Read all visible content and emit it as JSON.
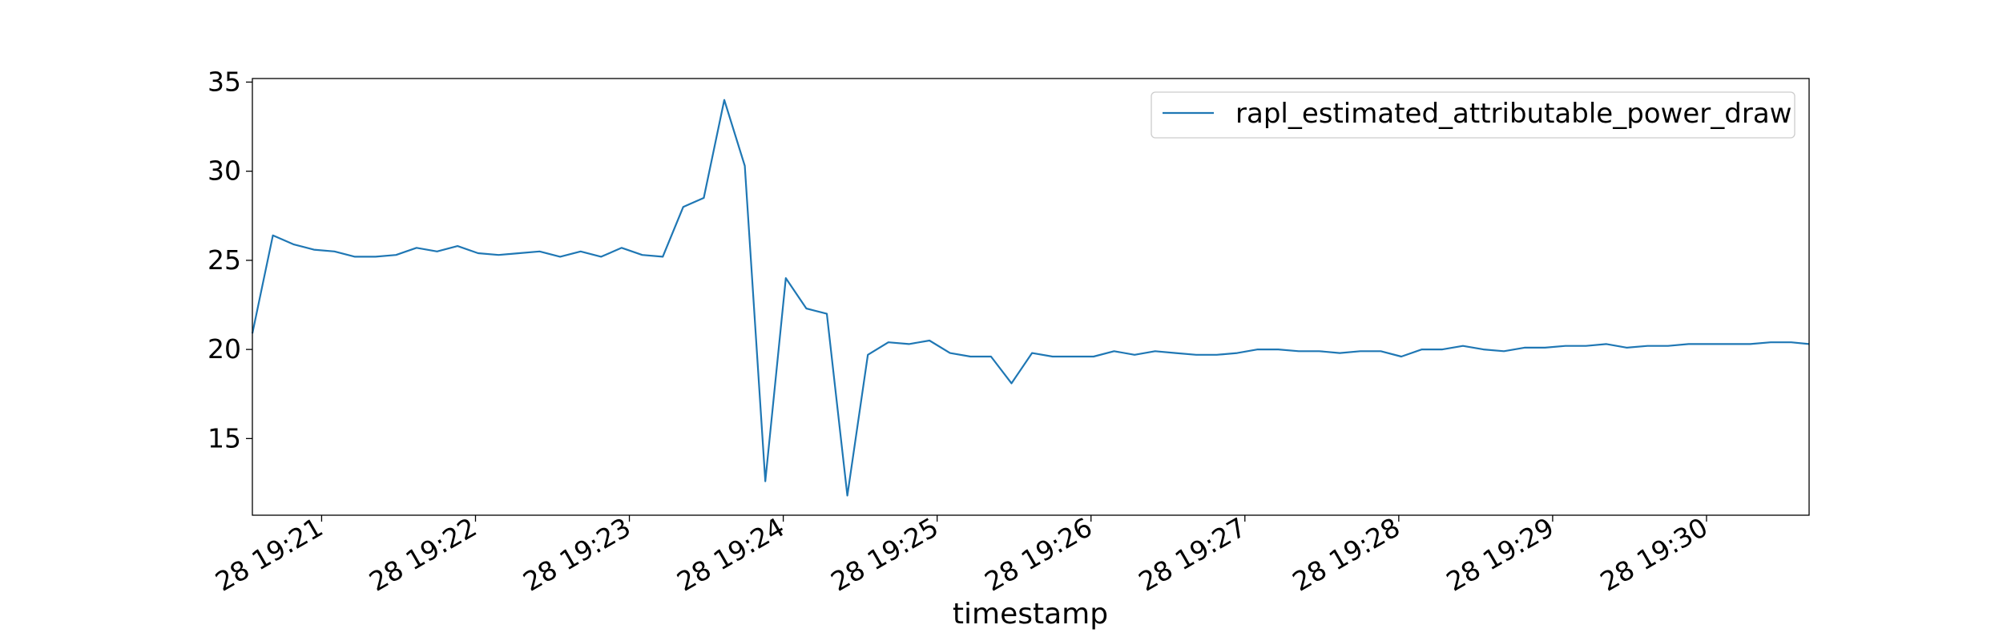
{
  "chart_data": {
    "type": "line",
    "title": "",
    "xlabel": "timestamp",
    "ylabel": "",
    "grid": false,
    "legend_position": "top-right",
    "line_color": "#1f77b4",
    "x_ticks": [
      {
        "time": "19:21",
        "label": "28 19:21"
      },
      {
        "time": "19:22",
        "label": "28 19:22"
      },
      {
        "time": "19:23",
        "label": "28 19:23"
      },
      {
        "time": "19:24",
        "label": "28 19:24"
      },
      {
        "time": "19:25",
        "label": "28 19:25"
      },
      {
        "time": "19:26",
        "label": "28 19:26"
      },
      {
        "time": "19:27",
        "label": "28 19:27"
      },
      {
        "time": "19:28",
        "label": "28 19:28"
      },
      {
        "time": "19:29",
        "label": "28 19:29"
      },
      {
        "time": "19:30",
        "label": "28 19:30"
      }
    ],
    "xlim": [
      "19:20:33",
      "19:30:40"
    ],
    "ylim": [
      10.7,
      35.2
    ],
    "y_ticks": [
      {
        "value": 15,
        "label": "15"
      },
      {
        "value": 20,
        "label": "20"
      },
      {
        "value": 25,
        "label": "25"
      },
      {
        "value": 30,
        "label": "30"
      },
      {
        "value": 35,
        "label": "35"
      }
    ],
    "series": [
      {
        "name": "rapl_estimated_attributable_power_draw",
        "x": [
          "19:20:33",
          "19:20:41",
          "19:20:49",
          "19:20:57",
          "19:21:05",
          "19:21:13",
          "19:21:21",
          "19:21:29",
          "19:21:37",
          "19:21:45",
          "19:21:53",
          "19:22:01",
          "19:22:09",
          "19:22:17",
          "19:22:25",
          "19:22:33",
          "19:22:41",
          "19:22:49",
          "19:22:57",
          "19:23:05",
          "19:23:13",
          "19:23:21",
          "19:23:29",
          "19:23:37",
          "19:23:45",
          "19:23:53",
          "19:24:01",
          "19:24:09",
          "19:24:17",
          "19:24:25",
          "19:24:33",
          "19:24:41",
          "19:24:49",
          "19:24:57",
          "19:25:05",
          "19:25:13",
          "19:25:21",
          "19:25:29",
          "19:25:37",
          "19:25:45",
          "19:25:53",
          "19:26:01",
          "19:26:09",
          "19:26:17",
          "19:26:25",
          "19:26:33",
          "19:26:41",
          "19:26:49",
          "19:26:57",
          "19:27:05",
          "19:27:13",
          "19:27:21",
          "19:27:29",
          "19:27:37",
          "19:27:45",
          "19:27:53",
          "19:28:01",
          "19:28:09",
          "19:28:17",
          "19:28:25",
          "19:28:33",
          "19:28:41",
          "19:28:49",
          "19:28:57",
          "19:29:05",
          "19:29:13",
          "19:29:21",
          "19:29:29",
          "19:29:37",
          "19:29:45",
          "19:29:53",
          "19:30:01",
          "19:30:09",
          "19:30:17",
          "19:30:25",
          "19:30:33",
          "19:30:40"
        ],
        "values": [
          20.9,
          26.4,
          25.9,
          25.6,
          25.5,
          25.2,
          25.2,
          25.3,
          25.7,
          25.5,
          25.8,
          25.4,
          25.3,
          25.4,
          25.5,
          25.2,
          25.5,
          25.2,
          25.7,
          25.3,
          25.2,
          28.0,
          28.5,
          34.0,
          30.3,
          12.6,
          24.0,
          22.3,
          22.0,
          11.8,
          19.7,
          20.4,
          20.3,
          20.5,
          19.8,
          19.6,
          19.6,
          18.1,
          19.8,
          19.6,
          19.6,
          19.6,
          19.9,
          19.7,
          19.9,
          19.8,
          19.7,
          19.7,
          19.8,
          20.0,
          20.0,
          19.9,
          19.9,
          19.8,
          19.9,
          19.9,
          19.6,
          20.0,
          20.0,
          20.2,
          20.0,
          19.9,
          20.1,
          20.1,
          20.2,
          20.2,
          20.3,
          20.1,
          20.2,
          20.2,
          20.3,
          20.3,
          20.3,
          20.3,
          20.4,
          20.4,
          20.3
        ]
      }
    ]
  }
}
